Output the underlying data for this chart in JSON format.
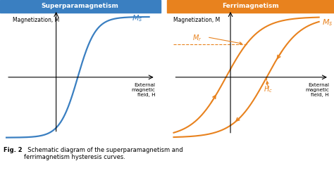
{
  "title_left": "Superparamagnetism",
  "title_right": "Ferrimagnetism",
  "title_bg_left": "#3a7fc1",
  "title_bg_right": "#e8821e",
  "ylabel": "Magnetization, M",
  "xlabel": "External\nmagnetic\nfield, H",
  "curve_color_left": "#3a7fc1",
  "curve_color_right": "#e8821e",
  "Ms_label": "M$_s$",
  "Mr_label": "M$_r$",
  "Hc_label": "H$_c$",
  "background": "#ffffff"
}
